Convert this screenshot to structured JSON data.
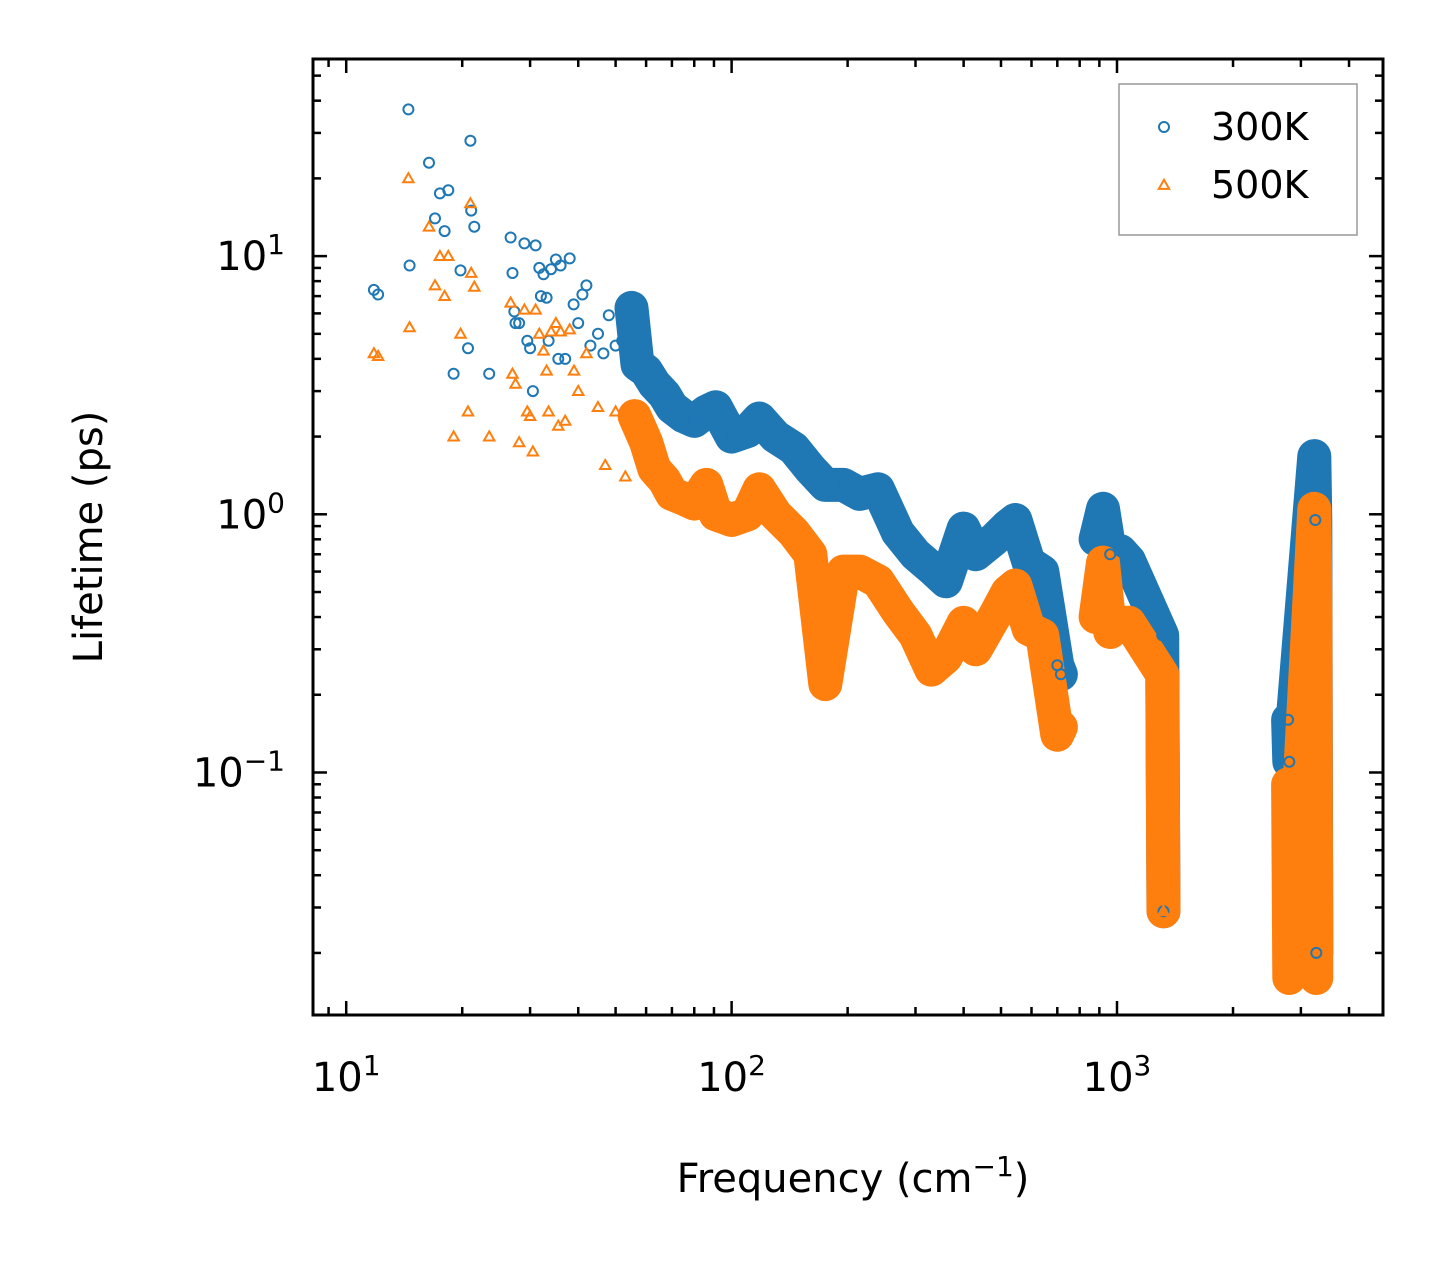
{
  "chart_data": {
    "type": "scatter",
    "xscale": "log",
    "yscale": "log",
    "xlim": [
      8.2,
      4900
    ],
    "ylim": [
      0.0115,
      58
    ],
    "xlabel": "Frequency (cm",
    "xlabel_sup": "−1",
    "xlabel_suffix": ")",
    "ylabel": "Lifetime (ps)",
    "x_major_ticks": [
      {
        "value": 10,
        "base": "10",
        "exp": "1"
      },
      {
        "value": 100,
        "base": "10",
        "exp": "2"
      },
      {
        "value": 1000,
        "base": "10",
        "exp": "3"
      }
    ],
    "y_major_ticks": [
      {
        "value": 0.1,
        "base": "10",
        "exp": "−1"
      },
      {
        "value": 1,
        "base": "10",
        "exp": "0"
      },
      {
        "value": 10,
        "base": "10",
        "exp": "1"
      }
    ],
    "legend_position": "top-right",
    "series": [
      {
        "name": "300K",
        "marker": "circle",
        "color": "#1f77b4",
        "points": [
          [
            11.8,
            7.4
          ],
          [
            12.1,
            7.1
          ],
          [
            14.5,
            37
          ],
          [
            14.6,
            9.2
          ],
          [
            16.4,
            23
          ],
          [
            17.0,
            14
          ],
          [
            17.5,
            17.5
          ],
          [
            18.0,
            12.5
          ],
          [
            18.4,
            18
          ],
          [
            19.0,
            3.5
          ],
          [
            19.8,
            8.8
          ],
          [
            20.7,
            4.4
          ],
          [
            21.0,
            28
          ],
          [
            21.1,
            15
          ],
          [
            21.5,
            13
          ],
          [
            23.5,
            3.5
          ],
          [
            26.7,
            11.8
          ],
          [
            27.0,
            8.6
          ],
          [
            27.3,
            6.1
          ],
          [
            27.5,
            5.5
          ],
          [
            28.1,
            5.5
          ],
          [
            29.0,
            11.2
          ],
          [
            29.5,
            4.7
          ],
          [
            30.0,
            4.4
          ],
          [
            30.5,
            3.0
          ],
          [
            31.0,
            11.0
          ],
          [
            31.7,
            9.0
          ],
          [
            32.0,
            7.0
          ],
          [
            32.5,
            8.5
          ],
          [
            33.1,
            6.9
          ],
          [
            33.5,
            4.7
          ],
          [
            34.0,
            8.9
          ],
          [
            35.0,
            9.7
          ],
          [
            35.5,
            4.0
          ],
          [
            36.0,
            9.2
          ],
          [
            37.0,
            4.0
          ],
          [
            38.0,
            9.8
          ],
          [
            38.9,
            6.5
          ],
          [
            40.0,
            5.5
          ],
          [
            41.0,
            7.1
          ],
          [
            42.0,
            7.7
          ],
          [
            43.0,
            4.5
          ],
          [
            45.0,
            5.0
          ],
          [
            46.5,
            4.2
          ],
          [
            48.0,
            5.9
          ],
          [
            50.0,
            4.5
          ],
          [
            52.0,
            4.7
          ],
          [
            55.0,
            6.3
          ],
          [
            57.0,
            3.8
          ],
          [
            60.0,
            3.6
          ],
          [
            63.0,
            3.2
          ],
          [
            67.0,
            2.9
          ],
          [
            70.0,
            2.6
          ],
          [
            75.0,
            2.4
          ],
          [
            80.0,
            2.3
          ],
          [
            86.0,
            2.5
          ],
          [
            91.0,
            2.6
          ],
          [
            100.0,
            2.0
          ],
          [
            110.0,
            2.1
          ],
          [
            118.0,
            2.35
          ],
          [
            130.0,
            2.0
          ],
          [
            145.0,
            1.8
          ],
          [
            160.0,
            1.5
          ],
          [
            175.0,
            1.3
          ],
          [
            195.0,
            1.3
          ],
          [
            215.0,
            1.2
          ],
          [
            240.0,
            1.25
          ],
          [
            270.0,
            0.85
          ],
          [
            300.0,
            0.7
          ],
          [
            330.0,
            0.62
          ],
          [
            360.0,
            0.55
          ],
          [
            400.0,
            0.88
          ],
          [
            430.0,
            0.7
          ],
          [
            480.0,
            0.8
          ],
          [
            520.0,
            0.9
          ],
          [
            545.0,
            0.95
          ],
          [
            590.0,
            0.65
          ],
          [
            640.0,
            0.6
          ],
          [
            700.0,
            0.26
          ],
          [
            715.0,
            0.24
          ],
          [
            880.0,
            0.8
          ],
          [
            920.0,
            1.05
          ],
          [
            960.0,
            0.7
          ],
          [
            1020.0,
            0.72
          ],
          [
            1075.0,
            0.66
          ],
          [
            1310.0,
            0.34
          ],
          [
            1320.0,
            0.029
          ],
          [
            2780.0,
            0.16
          ],
          [
            2800.0,
            0.11
          ],
          [
            3250.0,
            1.68
          ],
          [
            3270.0,
            0.95
          ],
          [
            3290.0,
            0.02
          ]
        ]
      },
      {
        "name": "500K",
        "marker": "triangle",
        "color": "#ff7f0e",
        "points": [
          [
            11.8,
            4.2
          ],
          [
            12.1,
            4.1
          ],
          [
            14.5,
            20
          ],
          [
            14.6,
            5.3
          ],
          [
            16.4,
            13
          ],
          [
            17.0,
            7.7
          ],
          [
            17.5,
            10
          ],
          [
            18.0,
            7.0
          ],
          [
            18.4,
            10
          ],
          [
            19.0,
            2.0
          ],
          [
            19.8,
            5.0
          ],
          [
            20.7,
            2.5
          ],
          [
            21.0,
            16
          ],
          [
            21.1,
            8.6
          ],
          [
            21.5,
            7.6
          ],
          [
            23.5,
            2.0
          ],
          [
            26.7,
            6.6
          ],
          [
            27.0,
            3.5
          ],
          [
            27.5,
            3.2
          ],
          [
            28.1,
            1.9
          ],
          [
            29.0,
            6.2
          ],
          [
            29.5,
            2.5
          ],
          [
            30.0,
            2.4
          ],
          [
            30.5,
            1.75
          ],
          [
            31.0,
            6.2
          ],
          [
            31.7,
            5.0
          ],
          [
            32.5,
            4.3
          ],
          [
            33.1,
            3.6
          ],
          [
            33.5,
            2.5
          ],
          [
            34.0,
            5.1
          ],
          [
            35.0,
            5.5
          ],
          [
            35.5,
            2.2
          ],
          [
            36.0,
            5.1
          ],
          [
            37.0,
            2.3
          ],
          [
            38.0,
            5.2
          ],
          [
            39.0,
            3.6
          ],
          [
            40.0,
            3.0
          ],
          [
            42.0,
            4.2
          ],
          [
            45.0,
            2.6
          ],
          [
            47.0,
            1.55
          ],
          [
            50.0,
            2.5
          ],
          [
            53.0,
            1.4
          ],
          [
            56.0,
            2.4
          ],
          [
            60.0,
            1.9
          ],
          [
            63.0,
            1.5
          ],
          [
            67.0,
            1.35
          ],
          [
            70.0,
            1.2
          ],
          [
            75.0,
            1.15
          ],
          [
            80.0,
            1.1
          ],
          [
            86.0,
            1.3
          ],
          [
            91.0,
            1.0
          ],
          [
            100.0,
            0.95
          ],
          [
            110.0,
            1.0
          ],
          [
            118.0,
            1.25
          ],
          [
            130.0,
            1.0
          ],
          [
            145.0,
            0.85
          ],
          [
            160.0,
            0.7
          ],
          [
            175.0,
            0.22
          ],
          [
            195.0,
            0.6
          ],
          [
            215.0,
            0.6
          ],
          [
            240.0,
            0.55
          ],
          [
            270.0,
            0.42
          ],
          [
            300.0,
            0.34
          ],
          [
            330.0,
            0.25
          ],
          [
            360.0,
            0.28
          ],
          [
            400.0,
            0.38
          ],
          [
            430.0,
            0.3
          ],
          [
            480.0,
            0.4
          ],
          [
            520.0,
            0.5
          ],
          [
            545.0,
            0.53
          ],
          [
            590.0,
            0.36
          ],
          [
            640.0,
            0.34
          ],
          [
            700.0,
            0.14
          ],
          [
            715.0,
            0.15
          ],
          [
            880.0,
            0.4
          ],
          [
            920.0,
            0.65
          ],
          [
            960.0,
            0.35
          ],
          [
            1020.0,
            0.38
          ],
          [
            1075.0,
            0.38
          ],
          [
            1310.0,
            0.24
          ],
          [
            1320.0,
            0.029
          ],
          [
            2780.0,
            0.09
          ],
          [
            2800.0,
            0.016
          ],
          [
            3250.0,
            1.05
          ],
          [
            3270.0,
            0.5
          ],
          [
            3290.0,
            0.016
          ]
        ]
      }
    ]
  }
}
